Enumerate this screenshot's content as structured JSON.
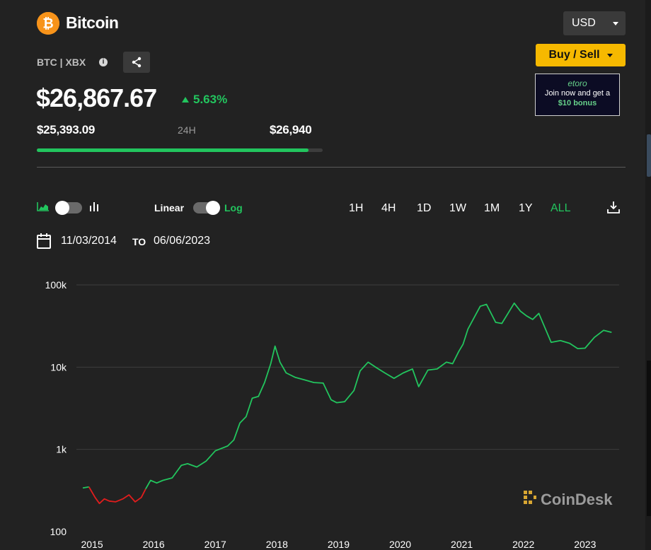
{
  "coin": {
    "name": "Bitcoin",
    "ticker": "BTC | XBX",
    "price": "$26,867.67",
    "change": "5.63%",
    "low": "$25,393.09",
    "range_label": "24H",
    "high": "$26,940",
    "range_progress": 0.95
  },
  "header": {
    "currency": "USD",
    "buy_sell": "Buy / Sell",
    "info_icon": "info-icon",
    "share_icon": "share-icon"
  },
  "ad": {
    "brand": "etoro",
    "line1": "Join now and get a",
    "amount": "$10",
    "line2": "bonus"
  },
  "controls": {
    "linear_label": "Linear",
    "log_label": "Log",
    "timeframes": [
      "1H",
      "4H",
      "1D",
      "1W",
      "1M",
      "1Y",
      "ALL"
    ],
    "active_timeframe": "ALL",
    "date_from": "11/03/2014",
    "date_to_label": "TO",
    "date_to": "06/06/2023",
    "download_icon": "download-icon"
  },
  "colors": {
    "up": "#22c55e",
    "down": "#e11d1d",
    "accent": "#f6b900",
    "bitcoin": "#f7931a"
  },
  "chart_data": {
    "type": "line",
    "scale": "log",
    "ylim": [
      100,
      100000
    ],
    "yticks": [
      "100k",
      "10k",
      "1k",
      "100"
    ],
    "xticks": [
      "2015",
      "2016",
      "2017",
      "2018",
      "2019",
      "2020",
      "2021",
      "2022",
      "2023"
    ],
    "x": [
      2014.85,
      2014.95,
      2015.05,
      2015.12,
      2015.2,
      2015.28,
      2015.38,
      2015.5,
      2015.6,
      2015.7,
      2015.8,
      2015.87,
      2015.95,
      2016.05,
      2016.15,
      2016.3,
      2016.45,
      2016.55,
      2016.7,
      2016.85,
      2017.0,
      2017.2,
      2017.3,
      2017.4,
      2017.5,
      2017.6,
      2017.7,
      2017.8,
      2017.9,
      2017.97,
      2018.05,
      2018.15,
      2018.3,
      2018.45,
      2018.6,
      2018.75,
      2018.88,
      2018.97,
      2019.1,
      2019.25,
      2019.35,
      2019.48,
      2019.6,
      2019.75,
      2019.9,
      2020.05,
      2020.2,
      2020.3,
      2020.45,
      2020.6,
      2020.75,
      2020.85,
      2020.95,
      2021.02,
      2021.1,
      2021.2,
      2021.3,
      2021.4,
      2021.55,
      2021.65,
      2021.75,
      2021.85,
      2021.95,
      2022.05,
      2022.15,
      2022.25,
      2022.35,
      2022.45,
      2022.6,
      2022.75,
      2022.88,
      2023.0,
      2023.15,
      2023.3,
      2023.43
    ],
    "values": [
      340,
      350,
      260,
      220,
      250,
      235,
      230,
      250,
      280,
      230,
      260,
      330,
      420,
      390,
      420,
      450,
      640,
      670,
      610,
      720,
      960,
      1100,
      1300,
      2100,
      2500,
      4200,
      4400,
      6500,
      11000,
      18000,
      11500,
      8500,
      7500,
      7000,
      6500,
      6400,
      4000,
      3700,
      3800,
      5200,
      9000,
      11500,
      10000,
      8500,
      7300,
      8500,
      9500,
      5800,
      9200,
      9500,
      11500,
      11000,
      15500,
      19000,
      29000,
      40000,
      55000,
      58000,
      35000,
      34000,
      45000,
      60000,
      48000,
      42000,
      38000,
      45000,
      30000,
      20000,
      21000,
      19500,
      16800,
      17000,
      23000,
      28000,
      26500
    ],
    "down_until": 2015.87,
    "watermark": "CoinDesk"
  }
}
